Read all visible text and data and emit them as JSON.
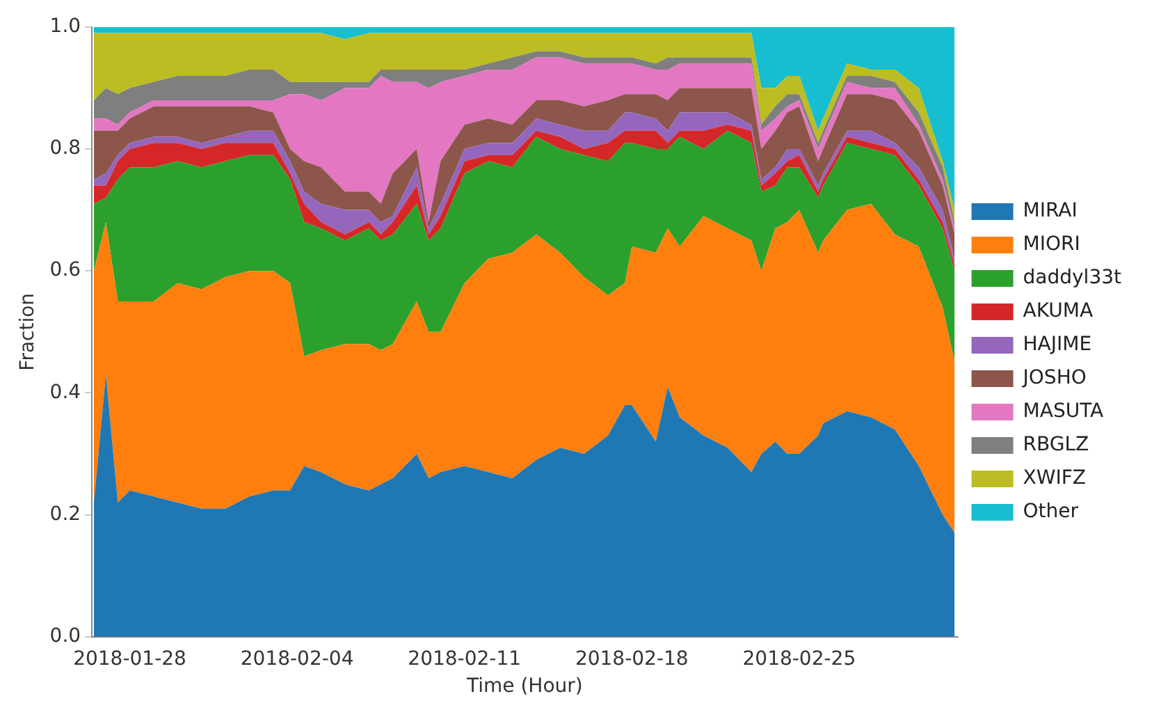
{
  "chart_data": {
    "type": "area",
    "stacked": true,
    "xlabel": "Time (Hour)",
    "ylabel": "Fraction",
    "x": [
      "2018-01-26T12:00",
      "2018-01-27T00:00",
      "2018-01-27T12:00",
      "2018-01-28",
      "2018-01-29",
      "2018-01-30",
      "2018-01-31",
      "2018-02-01",
      "2018-02-02",
      "2018-02-03",
      "2018-02-03T17:00",
      "2018-02-04T07:00",
      "2018-02-05",
      "2018-02-06",
      "2018-02-07",
      "2018-02-07T12:00",
      "2018-02-08",
      "2018-02-09",
      "2018-02-09T12:00",
      "2018-02-10",
      "2018-02-11",
      "2018-02-12",
      "2018-02-13",
      "2018-02-14",
      "2018-02-15",
      "2018-02-16",
      "2018-02-17",
      "2018-02-17T17:00",
      "2018-02-18",
      "2018-02-19",
      "2018-02-19T12:00",
      "2018-02-20",
      "2018-02-21",
      "2018-02-22",
      "2018-02-23",
      "2018-02-23T10:00",
      "2018-02-24",
      "2018-02-24T12:00",
      "2018-02-25",
      "2018-02-25T19:00",
      "2018-02-26",
      "2018-02-27",
      "2018-02-28",
      "2018-03-01",
      "2018-03-02",
      "2018-03-03",
      "2018-03-03T12:00"
    ],
    "series": [
      {
        "name": "MIRAI",
        "color": "#1f77b4",
        "values": [
          0.22,
          0.43,
          0.22,
          0.24,
          0.23,
          0.22,
          0.21,
          0.21,
          0.23,
          0.24,
          0.24,
          0.28,
          0.27,
          0.25,
          0.24,
          0.25,
          0.26,
          0.3,
          0.26,
          0.27,
          0.28,
          0.27,
          0.26,
          0.29,
          0.31,
          0.3,
          0.33,
          0.38,
          0.38,
          0.32,
          0.41,
          0.36,
          0.33,
          0.31,
          0.27,
          0.3,
          0.32,
          0.3,
          0.3,
          0.33,
          0.35,
          0.37,
          0.36,
          0.34,
          0.28,
          0.2,
          0.17
        ]
      },
      {
        "name": "MIORI",
        "color": "#ff7f0e",
        "values": [
          0.38,
          0.25,
          0.33,
          0.31,
          0.32,
          0.36,
          0.36,
          0.38,
          0.37,
          0.36,
          0.34,
          0.18,
          0.2,
          0.23,
          0.24,
          0.22,
          0.22,
          0.25,
          0.24,
          0.23,
          0.3,
          0.35,
          0.37,
          0.37,
          0.32,
          0.29,
          0.23,
          0.2,
          0.26,
          0.31,
          0.26,
          0.28,
          0.36,
          0.36,
          0.38,
          0.3,
          0.35,
          0.38,
          0.4,
          0.3,
          0.3,
          0.33,
          0.35,
          0.32,
          0.36,
          0.34,
          0.28
        ]
      },
      {
        "name": "daddyl33t",
        "color": "#2ca02c",
        "values": [
          0.11,
          0.04,
          0.2,
          0.22,
          0.22,
          0.2,
          0.2,
          0.19,
          0.19,
          0.19,
          0.17,
          0.22,
          0.2,
          0.17,
          0.19,
          0.18,
          0.18,
          0.16,
          0.15,
          0.17,
          0.18,
          0.16,
          0.14,
          0.16,
          0.17,
          0.2,
          0.22,
          0.23,
          0.17,
          0.17,
          0.13,
          0.18,
          0.11,
          0.16,
          0.16,
          0.13,
          0.07,
          0.09,
          0.07,
          0.09,
          0.09,
          0.11,
          0.09,
          0.13,
          0.1,
          0.13,
          0.15
        ]
      },
      {
        "name": "AKUMA",
        "color": "#d62728",
        "values": [
          0.03,
          0.02,
          0.03,
          0.03,
          0.04,
          0.03,
          0.03,
          0.03,
          0.02,
          0.02,
          0.01,
          0.03,
          0.01,
          0.01,
          0.01,
          0.01,
          0.02,
          0.03,
          0.01,
          0.02,
          0.02,
          0.01,
          0.02,
          0.01,
          0.02,
          0.01,
          0.03,
          0.02,
          0.02,
          0.03,
          0.01,
          0.01,
          0.03,
          0.01,
          0.02,
          0.01,
          0.02,
          0.01,
          0.02,
          0.01,
          0.01,
          0.01,
          0.01,
          0.01,
          0.01,
          0.01,
          0.01
        ]
      },
      {
        "name": "HAJIME",
        "color": "#9467bd",
        "values": [
          0.01,
          0.02,
          0.01,
          0.01,
          0.01,
          0.01,
          0.01,
          0.01,
          0.02,
          0.02,
          0.02,
          0.02,
          0.03,
          0.04,
          0.02,
          0.02,
          0.01,
          0.03,
          0.01,
          0.02,
          0.02,
          0.02,
          0.02,
          0.02,
          0.02,
          0.03,
          0.02,
          0.03,
          0.03,
          0.02,
          0.02,
          0.03,
          0.03,
          0.02,
          0.01,
          0.01,
          0.01,
          0.02,
          0.01,
          0.01,
          0.01,
          0.01,
          0.02,
          0.01,
          0.02,
          0.02,
          0.01
        ]
      },
      {
        "name": "JOSHO",
        "color": "#8c564b",
        "values": [
          0.08,
          0.07,
          0.04,
          0.04,
          0.05,
          0.05,
          0.06,
          0.05,
          0.04,
          0.03,
          0.02,
          0.05,
          0.06,
          0.03,
          0.03,
          0.03,
          0.07,
          0.03,
          0.01,
          0.07,
          0.04,
          0.04,
          0.03,
          0.03,
          0.04,
          0.04,
          0.05,
          0.03,
          0.03,
          0.04,
          0.05,
          0.04,
          0.04,
          0.04,
          0.06,
          0.05,
          0.06,
          0.06,
          0.07,
          0.04,
          0.04,
          0.06,
          0.06,
          0.07,
          0.06,
          0.04,
          0.04
        ]
      },
      {
        "name": "MASUTA",
        "color": "#e377c2",
        "values": [
          0.02,
          0.02,
          0.01,
          0.01,
          0.01,
          0.01,
          0.01,
          0.01,
          0.01,
          0.02,
          0.09,
          0.11,
          0.11,
          0.17,
          0.17,
          0.21,
          0.15,
          0.11,
          0.22,
          0.13,
          0.08,
          0.08,
          0.09,
          0.07,
          0.07,
          0.07,
          0.06,
          0.05,
          0.05,
          0.04,
          0.05,
          0.04,
          0.04,
          0.04,
          0.04,
          0.03,
          0.02,
          0.01,
          0.01,
          0.02,
          0.02,
          0.02,
          0.01,
          0.02,
          0.01,
          0.01,
          0.01
        ]
      },
      {
        "name": "RBGLZ",
        "color": "#7f7f7f",
        "values": [
          0.03,
          0.05,
          0.05,
          0.04,
          0.03,
          0.04,
          0.04,
          0.04,
          0.05,
          0.05,
          0.02,
          0.02,
          0.03,
          0.01,
          0.01,
          0.01,
          0.02,
          0.02,
          0.03,
          0.02,
          0.01,
          0.01,
          0.02,
          0.01,
          0.01,
          0.01,
          0.01,
          0.01,
          0.01,
          0.01,
          0.02,
          0.01,
          0.01,
          0.01,
          0.01,
          0.01,
          0.02,
          0.02,
          0.01,
          0.01,
          0.01,
          0.01,
          0.02,
          0.01,
          0.02,
          0.02,
          0.01
        ]
      },
      {
        "name": "XWIFZ",
        "color": "#bcbd22",
        "values": [
          0.11,
          0.09,
          0.1,
          0.09,
          0.08,
          0.07,
          0.07,
          0.07,
          0.06,
          0.06,
          0.08,
          0.08,
          0.08,
          0.07,
          0.08,
          0.06,
          0.06,
          0.06,
          0.06,
          0.06,
          0.06,
          0.05,
          0.04,
          0.03,
          0.03,
          0.04,
          0.04,
          0.04,
          0.04,
          0.05,
          0.04,
          0.04,
          0.04,
          0.04,
          0.04,
          0.06,
          0.03,
          0.03,
          0.03,
          0.02,
          0.02,
          0.02,
          0.01,
          0.02,
          0.04,
          0.01,
          0.02
        ]
      },
      {
        "name": "Other",
        "color": "#17becf",
        "values": [
          0.01,
          0.01,
          0.01,
          0.01,
          0.01,
          0.01,
          0.01,
          0.01,
          0.01,
          0.01,
          0.01,
          0.01,
          0.01,
          0.02,
          0.01,
          0.01,
          0.01,
          0.01,
          0.01,
          0.01,
          0.01,
          0.01,
          0.01,
          0.01,
          0.01,
          0.01,
          0.01,
          0.01,
          0.01,
          0.01,
          0.01,
          0.01,
          0.01,
          0.01,
          0.01,
          0.1,
          0.1,
          0.08,
          0.08,
          0.17,
          0.15,
          0.06,
          0.07,
          0.07,
          0.1,
          0.22,
          0.3
        ]
      }
    ],
    "xlim": [
      "2018-01-26T10:00",
      "2018-03-03T15:00"
    ],
    "xticks": [
      "2018-01-28",
      "2018-02-04",
      "2018-02-11",
      "2018-02-18",
      "2018-02-25"
    ],
    "ylim": [
      0,
      1
    ],
    "yticks": [
      {
        "value": 0,
        "label": "0.0"
      },
      {
        "value": 0.2,
        "label": "0.2"
      },
      {
        "value": 0.4,
        "label": "0.4"
      },
      {
        "value": 0.6,
        "label": "0.6"
      },
      {
        "value": 0.8,
        "label": "0.8"
      },
      {
        "value": 1,
        "label": "1.0"
      }
    ],
    "grid": false,
    "legend": "right"
  }
}
